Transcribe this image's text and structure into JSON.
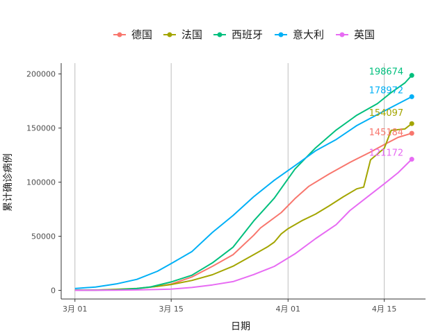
{
  "chart_data": {
    "type": "line",
    "xlabel": "日期",
    "ylabel": "累计确诊病例",
    "x_ticks": [
      "3月 01",
      "3月 15",
      "4月 01",
      "4月 15"
    ],
    "y_ticks": [
      "0",
      "50000",
      "100000",
      "150000",
      "200000"
    ],
    "ylim": [
      -8000,
      210000
    ],
    "xlim": [
      "2020-02-28",
      "2020-04-21"
    ],
    "grid": "vertical major lines only",
    "legend_position": "top",
    "series": [
      {
        "name": "德国",
        "color": "#F8766D",
        "end_label": "145184",
        "points": [
          [
            "2020-03-01",
            130
          ],
          [
            "2020-03-04",
            262
          ],
          [
            "2020-03-07",
            800
          ],
          [
            "2020-03-10",
            1565
          ],
          [
            "2020-03-13",
            3675
          ],
          [
            "2020-03-15",
            5813
          ],
          [
            "2020-03-18",
            12327
          ],
          [
            "2020-03-21",
            22213
          ],
          [
            "2020-03-24",
            32986
          ],
          [
            "2020-03-27",
            50871
          ],
          [
            "2020-03-28",
            57695
          ],
          [
            "2020-03-31",
            71808
          ],
          [
            "2020-04-02",
            84794
          ],
          [
            "2020-04-04",
            96092
          ],
          [
            "2020-04-07",
            107663
          ],
          [
            "2020-04-10",
            118235
          ],
          [
            "2020-04-13",
            127854
          ],
          [
            "2020-04-15",
            134753
          ],
          [
            "2020-04-17",
            141397
          ],
          [
            "2020-04-19",
            145184
          ]
        ]
      },
      {
        "name": "法国",
        "color": "#A3A500",
        "end_label": "154097",
        "points": [
          [
            "2020-03-01",
            130
          ],
          [
            "2020-03-04",
            285
          ],
          [
            "2020-03-07",
            949
          ],
          [
            "2020-03-10",
            1784
          ],
          [
            "2020-03-13",
            3661
          ],
          [
            "2020-03-15",
            5423
          ],
          [
            "2020-03-18",
            9134
          ],
          [
            "2020-03-21",
            14459
          ],
          [
            "2020-03-24",
            22302
          ],
          [
            "2020-03-27",
            32964
          ],
          [
            "2020-03-29",
            40174
          ],
          [
            "2020-03-30",
            44550
          ],
          [
            "2020-03-31",
            52128
          ],
          [
            "2020-04-01",
            56989
          ],
          [
            "2020-04-03",
            64338
          ],
          [
            "2020-04-05",
            70478
          ],
          [
            "2020-04-07",
            78167
          ],
          [
            "2020-04-09",
            86334
          ],
          [
            "2020-04-11",
            93790
          ],
          [
            "2020-04-12",
            95403
          ],
          [
            "2020-04-13",
            120633
          ],
          [
            "2020-04-15",
            131361
          ],
          [
            "2020-04-16",
            147863
          ],
          [
            "2020-04-18",
            149130
          ],
          [
            "2020-04-19",
            154097
          ]
        ]
      },
      {
        "name": "西班牙",
        "color": "#00BF7D",
        "end_label": "198674",
        "points": [
          [
            "2020-03-01",
            84
          ],
          [
            "2020-03-04",
            222
          ],
          [
            "2020-03-07",
            500
          ],
          [
            "2020-03-10",
            1695
          ],
          [
            "2020-03-12",
            3146
          ],
          [
            "2020-03-15",
            7798
          ],
          [
            "2020-03-18",
            13910
          ],
          [
            "2020-03-21",
            25374
          ],
          [
            "2020-03-24",
            39885
          ],
          [
            "2020-03-27",
            64059
          ],
          [
            "2020-03-30",
            85195
          ],
          [
            "2020-04-02",
            112065
          ],
          [
            "2020-04-05",
            131646
          ],
          [
            "2020-04-08",
            148220
          ],
          [
            "2020-04-11",
            161852
          ],
          [
            "2020-04-14",
            172541
          ],
          [
            "2020-04-16",
            182816
          ],
          [
            "2020-04-18",
            191726
          ],
          [
            "2020-04-19",
            198674
          ]
        ]
      },
      {
        "name": "意大利",
        "color": "#00B0F6",
        "end_label": "178972",
        "points": [
          [
            "2020-03-01",
            1694
          ],
          [
            "2020-03-04",
            3089
          ],
          [
            "2020-03-07",
            5883
          ],
          [
            "2020-03-10",
            10149
          ],
          [
            "2020-03-13",
            17660
          ],
          [
            "2020-03-15",
            24747
          ],
          [
            "2020-03-18",
            35713
          ],
          [
            "2020-03-21",
            53578
          ],
          [
            "2020-03-24",
            69176
          ],
          [
            "2020-03-27",
            86498
          ],
          [
            "2020-03-30",
            101739
          ],
          [
            "2020-04-02",
            115242
          ],
          [
            "2020-04-05",
            128948
          ],
          [
            "2020-04-08",
            139422
          ],
          [
            "2020-04-11",
            152271
          ],
          [
            "2020-04-14",
            162488
          ],
          [
            "2020-04-17",
            172434
          ],
          [
            "2020-04-19",
            178972
          ]
        ]
      },
      {
        "name": "英国",
        "color": "#E76BF3",
        "end_label": "121172",
        "points": [
          [
            "2020-03-01",
            36
          ],
          [
            "2020-03-04",
            87
          ],
          [
            "2020-03-07",
            209
          ],
          [
            "2020-03-10",
            383
          ],
          [
            "2020-03-13",
            801
          ],
          [
            "2020-03-15",
            1145
          ],
          [
            "2020-03-18",
            2626
          ],
          [
            "2020-03-21",
            5018
          ],
          [
            "2020-03-24",
            8077
          ],
          [
            "2020-03-27",
            14543
          ],
          [
            "2020-03-30",
            22141
          ],
          [
            "2020-04-02",
            33718
          ],
          [
            "2020-04-05",
            47806
          ],
          [
            "2020-04-08",
            60733
          ],
          [
            "2020-04-10",
            73758
          ],
          [
            "2020-04-13",
            88621
          ],
          [
            "2020-04-15",
            98476
          ],
          [
            "2020-04-17",
            108692
          ],
          [
            "2020-04-19",
            121172
          ]
        ]
      }
    ]
  }
}
